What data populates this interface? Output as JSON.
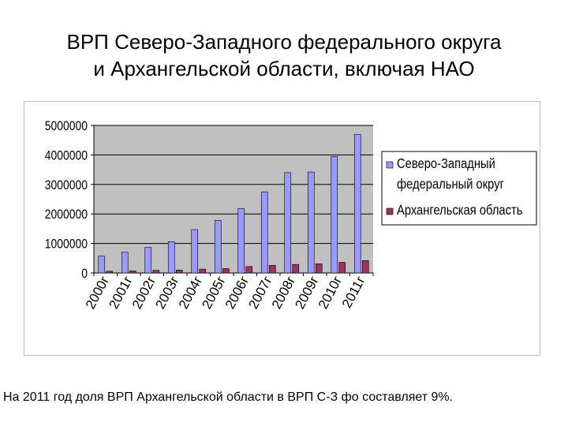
{
  "title": {
    "line1": "ВРП Северо-Западного федерального округа",
    "line2": "и Архангельской области, включая НАО"
  },
  "footer": {
    "text": "На 2011 год доля ВРП Архангельской области в ВРП С-З фо составляет 9%."
  },
  "colors": {
    "series1": "#9999ff",
    "series2": "#993366",
    "plot_bg": "#c0c0c0",
    "grid": "#000000"
  },
  "chart_data": {
    "type": "bar",
    "title": "",
    "xlabel": "",
    "ylabel": "",
    "ylim": [
      0,
      5000000
    ],
    "yticks": [
      0,
      1000000,
      2000000,
      3000000,
      4000000,
      5000000
    ],
    "ytick_labels": [
      "0",
      "1000000",
      "2000000",
      "3000000",
      "4000000",
      "5000000"
    ],
    "grid": true,
    "legend_position": "right",
    "categories": [
      "2000г",
      "2001г",
      "2002г",
      "2003г",
      "2004г",
      "2005г",
      "2006г",
      "2007г",
      "2008г",
      "2009г",
      "2010г",
      "2011г"
    ],
    "series": [
      {
        "name": "Северо-Западный федеральный округ",
        "values": [
          570000,
          700000,
          870000,
          1060000,
          1470000,
          1780000,
          2180000,
          2750000,
          3400000,
          3420000,
          3950000,
          4700000
        ]
      },
      {
        "name": "Архангельская область",
        "values": [
          60000,
          70000,
          90000,
          100000,
          130000,
          150000,
          220000,
          260000,
          290000,
          310000,
          360000,
          420000
        ]
      }
    ],
    "legend_lines": [
      [
        "Северо-Западный",
        "федеральный округ"
      ],
      [
        "Архангельская область"
      ]
    ]
  }
}
